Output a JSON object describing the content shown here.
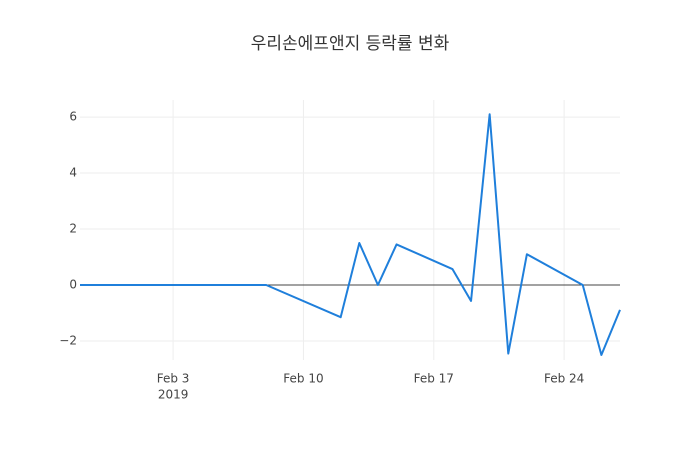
{
  "chart_data": {
    "type": "line",
    "title": "우리손에프앤지 등락률 변화",
    "x": [
      "2019-01-29",
      "2019-01-30",
      "2019-01-31",
      "2019-02-01",
      "2019-02-07",
      "2019-02-08",
      "2019-02-12",
      "2019-02-13",
      "2019-02-14",
      "2019-02-15",
      "2019-02-18",
      "2019-02-19",
      "2019-02-20",
      "2019-02-21",
      "2019-02-22",
      "2019-02-25",
      "2019-02-26",
      "2019-02-27"
    ],
    "series": [
      {
        "color": "#1f7fdb",
        "values": [
          0,
          0,
          0,
          0,
          0,
          0,
          -1.15,
          1.5,
          0,
          1.45,
          0.57,
          -0.57,
          6.1,
          -2.45,
          1.1,
          0,
          -2.5,
          -0.89
        ]
      }
    ],
    "xlim": [
      "2019-01-29",
      "2019-02-27"
    ],
    "xticks": [
      {
        "value": "2019-02-03",
        "label": "Feb 3"
      },
      {
        "value": "2019-02-10",
        "label": "Feb 10"
      },
      {
        "value": "2019-02-17",
        "label": "Feb 17"
      },
      {
        "value": "2019-02-24",
        "label": "Feb 24"
      }
    ],
    "x_year_label": "2019",
    "ylim": [
      -2.68,
      6.61
    ],
    "yticks": [
      {
        "value": -2,
        "label": "−2"
      },
      0,
      2,
      4,
      6
    ],
    "grid": true
  }
}
